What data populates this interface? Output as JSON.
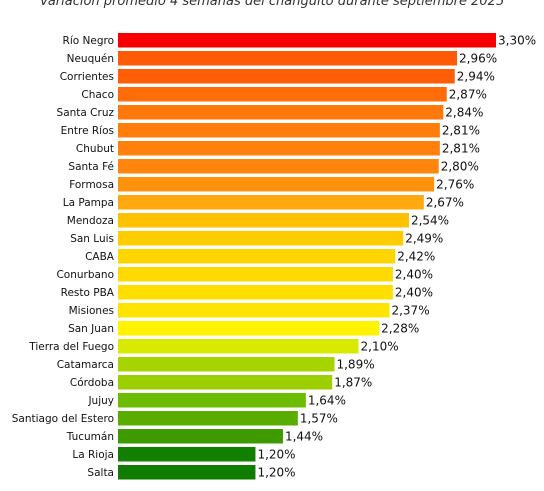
{
  "chart_data": {
    "type": "bar",
    "orientation": "horizontal",
    "title": "Variación promedio 4 semanas del changuito durante septiembre 2025",
    "xlabel": "",
    "ylabel": "",
    "xlim": [
      0,
      3.3
    ],
    "grid": false,
    "legend": "none",
    "categories": [
      "Río Negro",
      "Neuquén",
      "Corrientes",
      "Chaco",
      "Santa Cruz",
      "Entre Ríos",
      "Chubut",
      "Santa Fé",
      "Formosa",
      "La Pampa",
      "Mendoza",
      "San Luis",
      "CABA",
      "Conurbano",
      "Resto PBA",
      "Misiones",
      "San Juan",
      "Tierra del Fuego",
      "Catamarca",
      "Córdoba",
      "Jujuy",
      "Santiago del Estero",
      "Tucumán",
      "La Rioja",
      "Salta"
    ],
    "values": [
      3.3,
      2.96,
      2.94,
      2.87,
      2.84,
      2.81,
      2.81,
      2.8,
      2.76,
      2.67,
      2.54,
      2.49,
      2.42,
      2.4,
      2.4,
      2.37,
      2.28,
      2.1,
      1.89,
      1.87,
      1.64,
      1.57,
      1.44,
      1.2,
      1.2
    ],
    "value_labels": [
      "3,30%",
      "2,96%",
      "2,94%",
      "2,87%",
      "2,84%",
      "2,81%",
      "2,81%",
      "2,80%",
      "2,76%",
      "2,67%",
      "2,54%",
      "2,49%",
      "2,42%",
      "2,40%",
      "2,40%",
      "2,37%",
      "2,28%",
      "2,10%",
      "1,89%",
      "1,87%",
      "1,64%",
      "1,57%",
      "1,44%",
      "1,20%",
      "1,20%"
    ],
    "colors": [
      "#f90000",
      "#ff5a05",
      "#ff5d06",
      "#ff6c08",
      "#ff780a",
      "#ff7e0b",
      "#ff810b",
      "#ff850c",
      "#ff920d",
      "#ffa80f",
      "#ffc100",
      "#ffcc00",
      "#ffd500",
      "#ffda00",
      "#ffdf00",
      "#ffe400",
      "#fff300",
      "#d8ea00",
      "#a6d400",
      "#9bcf00",
      "#6cbc00",
      "#58ad00",
      "#3d9a00",
      "#118000",
      "#0f7d00"
    ]
  }
}
